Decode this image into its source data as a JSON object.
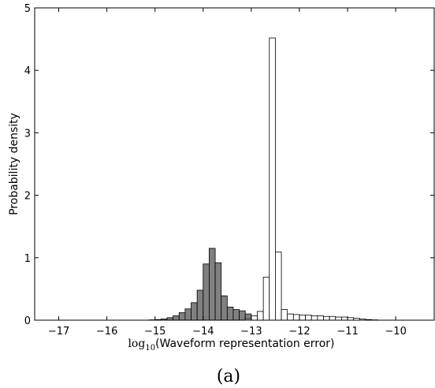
{
  "chart_data": {
    "type": "bar",
    "xlabel_prefix": "log",
    "xlabel_subscript": "10",
    "xlabel_rest": "(Waveform representation error)",
    "ylabel": "Probability density",
    "caption": "(a)",
    "xlim": [
      -17.5,
      -9.2
    ],
    "ylim": [
      0,
      5
    ],
    "bin_width": 0.125,
    "x_ticks": [
      -17,
      -16,
      -15,
      -14,
      -13,
      -12,
      -11,
      -10
    ],
    "x_tick_labels": [
      "−17",
      "−16",
      "−15",
      "−14",
      "−13",
      "−12",
      "−11",
      "−10"
    ],
    "y_ticks": [
      0,
      1,
      2,
      3,
      4,
      5
    ],
    "y_tick_labels": [
      "0",
      "1",
      "2",
      "3",
      "4",
      "5"
    ],
    "series": [
      {
        "color": "#808080",
        "x": [
          -15.125,
          -15.0,
          -14.875,
          -14.75,
          -14.625,
          -14.5,
          -14.375,
          -14.25,
          -14.125,
          -14.0,
          -13.875,
          -13.75,
          -13.625,
          -13.5,
          -13.375,
          -13.25,
          -13.125,
          -13.0,
          -12.875
        ],
        "values": [
          0.005,
          0.01,
          0.02,
          0.04,
          0.07,
          0.12,
          0.18,
          0.28,
          0.48,
          0.9,
          1.15,
          0.92,
          0.39,
          0.21,
          0.17,
          0.15,
          0.1,
          0.04,
          0.01
        ]
      },
      {
        "color": "#ffffff",
        "x": [
          -13.125,
          -13.0,
          -12.875,
          -12.75,
          -12.625,
          -12.5,
          -12.375,
          -12.25,
          -12.125,
          -12.0,
          -11.875,
          -11.75,
          -11.625,
          -11.5,
          -11.375,
          -11.25,
          -11.125,
          -11.0,
          -10.875,
          -10.75,
          -10.625,
          -10.5
        ],
        "values": [
          0.02,
          0.07,
          0.14,
          0.69,
          4.52,
          1.09,
          0.17,
          0.1,
          0.09,
          0.08,
          0.08,
          0.07,
          0.07,
          0.06,
          0.06,
          0.05,
          0.05,
          0.04,
          0.03,
          0.02,
          0.01,
          0.005
        ]
      }
    ]
  }
}
